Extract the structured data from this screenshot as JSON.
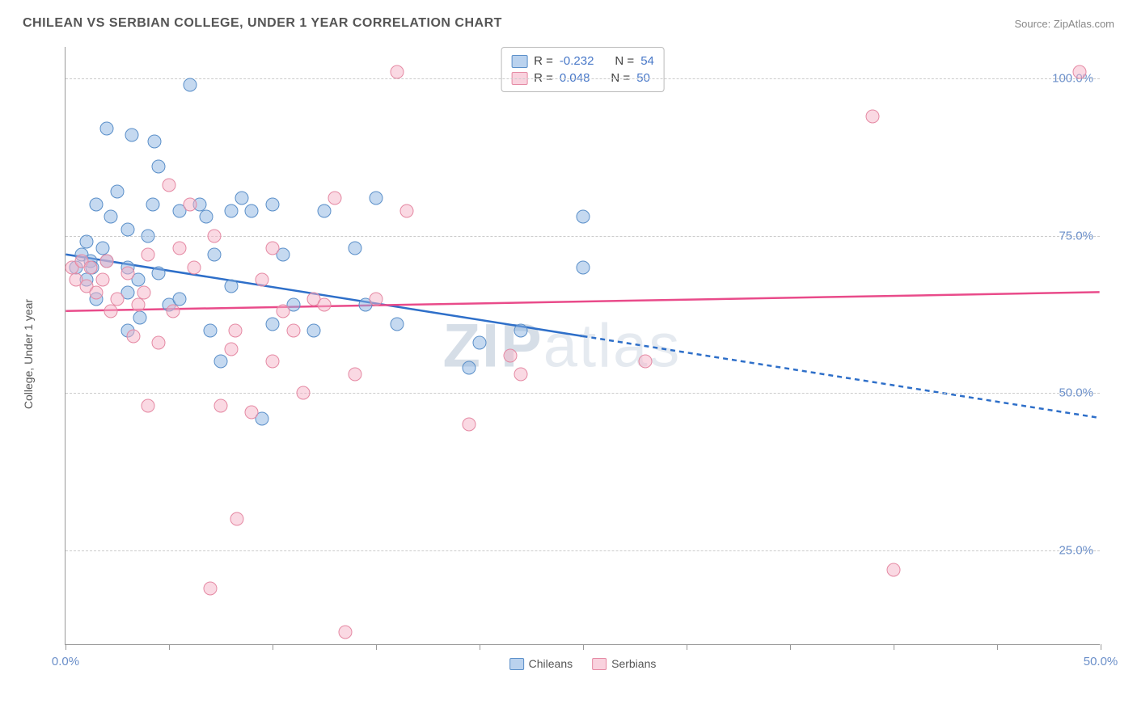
{
  "title": "CHILEAN VS SERBIAN COLLEGE, UNDER 1 YEAR CORRELATION CHART",
  "source": "Source: ZipAtlas.com",
  "watermark": "ZIPatlas",
  "chart": {
    "type": "scatter",
    "ylabel": "College, Under 1 year",
    "xlim": [
      0,
      50
    ],
    "ylim": [
      10,
      105
    ],
    "background_color": "#ffffff",
    "grid_color": "#cccccc",
    "axis_color": "#999999",
    "tick_label_color": "#6b8fc9",
    "tick_fontsize": 15,
    "ylabel_fontsize": 14,
    "ylabel_color": "#555555",
    "yticks": [
      25,
      50,
      75,
      100
    ],
    "ytick_labels": [
      "25.0%",
      "50.0%",
      "75.0%",
      "100.0%"
    ],
    "xticks": [
      0,
      5,
      10,
      15,
      20,
      25,
      30,
      35,
      40,
      45,
      50
    ],
    "xtick_labels": {
      "0": "0.0%",
      "50": "50.0%"
    },
    "marker_size": 17,
    "series": [
      {
        "name": "Chileans",
        "label": "Chileans",
        "fill_color": "rgba(140,180,226,0.5)",
        "border_color": "#5a8fc9",
        "stats": {
          "R": "-0.232",
          "N": "54"
        },
        "trend": {
          "y_at_xmin": 72,
          "y_at_xmax": 46,
          "solid_until_x": 25,
          "color": "#2e6fc9",
          "width": 2.5,
          "dash": "6,5"
        },
        "points": [
          [
            0.5,
            70
          ],
          [
            0.8,
            72
          ],
          [
            1,
            74
          ],
          [
            1,
            68
          ],
          [
            1.2,
            71
          ],
          [
            1.3,
            70
          ],
          [
            1.5,
            80
          ],
          [
            1.5,
            65
          ],
          [
            1.8,
            73
          ],
          [
            2,
            92
          ],
          [
            2,
            71
          ],
          [
            2.2,
            78
          ],
          [
            2.5,
            82
          ],
          [
            3,
            70
          ],
          [
            3,
            76
          ],
          [
            3,
            60
          ],
          [
            3,
            66
          ],
          [
            3.5,
            68
          ],
          [
            3.6,
            62
          ],
          [
            4,
            75
          ],
          [
            4.2,
            80
          ],
          [
            4.5,
            86
          ],
          [
            4.5,
            69
          ],
          [
            5,
            64
          ],
          [
            5.5,
            79
          ],
          [
            5.5,
            65
          ],
          [
            6,
            99
          ],
          [
            6.5,
            80
          ],
          [
            6.8,
            78
          ],
          [
            7,
            60
          ],
          [
            7.2,
            72
          ],
          [
            7.5,
            55
          ],
          [
            8,
            79
          ],
          [
            8,
            67
          ],
          [
            8.5,
            81
          ],
          [
            9,
            79
          ],
          [
            9.5,
            46
          ],
          [
            10,
            80
          ],
          [
            10,
            61
          ],
          [
            10.5,
            72
          ],
          [
            11,
            64
          ],
          [
            12,
            60
          ],
          [
            12.5,
            79
          ],
          [
            14,
            73
          ],
          [
            14.5,
            64
          ],
          [
            15,
            81
          ],
          [
            16,
            61
          ],
          [
            19.5,
            54
          ],
          [
            20,
            58
          ],
          [
            25,
            70
          ],
          [
            25,
            78
          ],
          [
            22,
            60
          ],
          [
            4.3,
            90
          ],
          [
            3.2,
            91
          ]
        ]
      },
      {
        "name": "Serbians",
        "label": "Serbians",
        "fill_color": "rgba(245,180,200,0.5)",
        "border_color": "#e589a3",
        "stats": {
          "R": "0.048",
          "N": "50"
        },
        "trend": {
          "y_at_xmin": 63,
          "y_at_xmax": 66,
          "solid_until_x": 50,
          "color": "#e94b8a",
          "width": 2.5,
          "dash": null
        },
        "points": [
          [
            0.3,
            70
          ],
          [
            0.5,
            68
          ],
          [
            0.8,
            71
          ],
          [
            1,
            67
          ],
          [
            1.2,
            70
          ],
          [
            1.5,
            66
          ],
          [
            1.8,
            68
          ],
          [
            2,
            71
          ],
          [
            2.2,
            63
          ],
          [
            2.5,
            65
          ],
          [
            3,
            69
          ],
          [
            3.3,
            59
          ],
          [
            3.5,
            64
          ],
          [
            4,
            48
          ],
          [
            4,
            72
          ],
          [
            4.5,
            58
          ],
          [
            5,
            83
          ],
          [
            5.2,
            63
          ],
          [
            5.5,
            73
          ],
          [
            6,
            80
          ],
          [
            6.2,
            70
          ],
          [
            7,
            19
          ],
          [
            7.2,
            75
          ],
          [
            7.5,
            48
          ],
          [
            8,
            57
          ],
          [
            8.2,
            60
          ],
          [
            8.3,
            30
          ],
          [
            9,
            47
          ],
          [
            9.5,
            68
          ],
          [
            10,
            55
          ],
          [
            10,
            73
          ],
          [
            10.5,
            63
          ],
          [
            11,
            60
          ],
          [
            11.5,
            50
          ],
          [
            12,
            65
          ],
          [
            12.5,
            64
          ],
          [
            13,
            81
          ],
          [
            13.5,
            12
          ],
          [
            14,
            53
          ],
          [
            15,
            65
          ],
          [
            16,
            101
          ],
          [
            16.5,
            79
          ],
          [
            19.5,
            45
          ],
          [
            21.5,
            56
          ],
          [
            22,
            53
          ],
          [
            28,
            55
          ],
          [
            39,
            94
          ],
          [
            40,
            22
          ],
          [
            49,
            101
          ],
          [
            3.8,
            66
          ]
        ]
      }
    ]
  },
  "stats_box": {
    "rows": [
      {
        "swatch": "blue",
        "r_label": "R =",
        "r_val": "-0.232",
        "n_label": "N =",
        "n_val": "54"
      },
      {
        "swatch": "pink",
        "r_label": "R =",
        "r_val": "0.048",
        "n_label": "N =",
        "n_val": "50"
      }
    ]
  },
  "legend": [
    {
      "swatch": "blue",
      "label": "Chileans"
    },
    {
      "swatch": "pink",
      "label": "Serbians"
    }
  ]
}
